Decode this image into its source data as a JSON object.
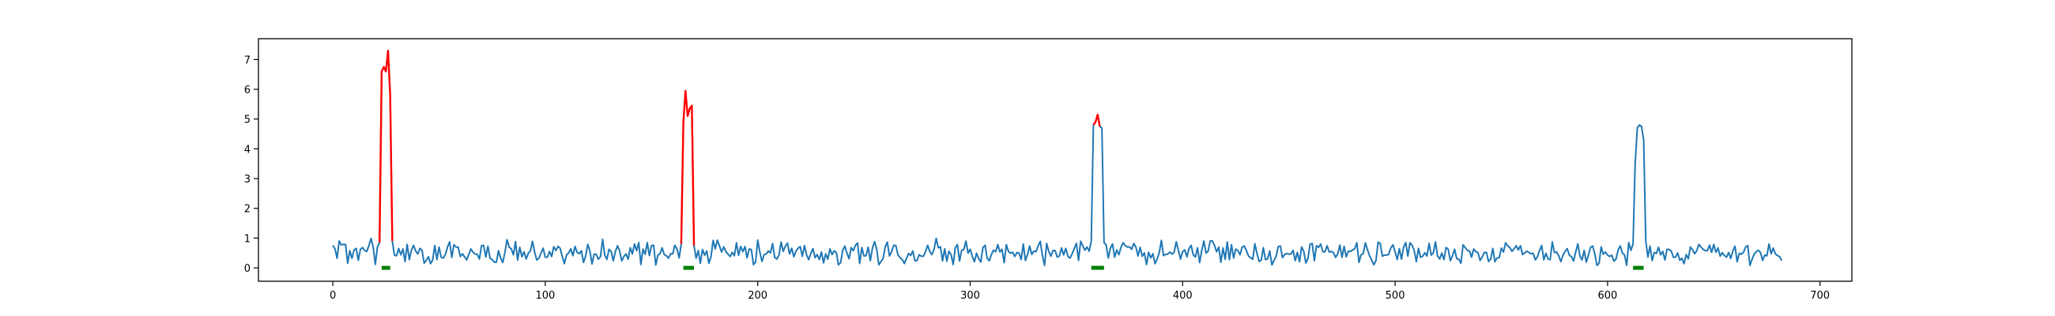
{
  "chart_data": {
    "type": "line",
    "title": "",
    "xlabel": "",
    "ylabel": "",
    "xlim": [
      -35,
      715
    ],
    "ylim": [
      -0.45,
      7.7
    ],
    "x_ticks": [
      0,
      100,
      200,
      300,
      400,
      500,
      600,
      700
    ],
    "y_ticks": [
      0,
      1,
      2,
      3,
      4,
      5,
      6,
      7
    ],
    "grid": false,
    "legend": "none",
    "n_points": 683,
    "colors": {
      "signal": "#1f77b4",
      "anomaly": "#ff0000",
      "marker": "#008000"
    },
    "series": [
      {
        "kind": "signal",
        "baseline_range": [
          0.0,
          1.0
        ],
        "peaks": [
          {
            "x": [
              22,
              23,
              24,
              25,
              26,
              27,
              28
            ],
            "y": [
              0.85,
              6.6,
              6.75,
              6.6,
              7.3,
              5.8,
              0.9
            ]
          },
          {
            "x": [
              164,
              165,
              166,
              167,
              168,
              169,
              170
            ],
            "y": [
              0.8,
              4.9,
              5.95,
              5.1,
              5.35,
              5.45,
              0.75
            ]
          },
          {
            "x": [
              357,
              358,
              359,
              360,
              361,
              362,
              363
            ],
            "y": [
              0.9,
              4.8,
              4.9,
              5.15,
              4.75,
              4.7,
              0.85
            ]
          },
          {
            "x": [
              612,
              613,
              614,
              615,
              616,
              617,
              618
            ],
            "y": [
              0.8,
              3.5,
              4.7,
              4.8,
              4.75,
              4.3,
              0.9
            ]
          }
        ]
      },
      {
        "kind": "anomaly",
        "segments": [
          {
            "x": [
              22,
              23,
              24,
              25,
              26,
              27,
              28
            ],
            "y": [
              0.85,
              6.6,
              6.75,
              6.6,
              7.3,
              5.8,
              0.9
            ]
          },
          {
            "x": [
              164,
              165,
              166,
              167,
              168,
              169,
              170
            ],
            "y": [
              0.8,
              4.9,
              5.95,
              5.1,
              5.35,
              5.45,
              0.75
            ]
          },
          {
            "x": [
              358,
              359,
              360,
              361
            ],
            "y": [
              4.8,
              4.9,
              5.15,
              4.75
            ]
          }
        ]
      },
      {
        "kind": "marker",
        "intervals": [
          [
            23,
            27
          ],
          [
            165,
            170
          ],
          [
            357,
            363
          ],
          [
            612,
            617
          ]
        ],
        "y": 0
      }
    ]
  }
}
